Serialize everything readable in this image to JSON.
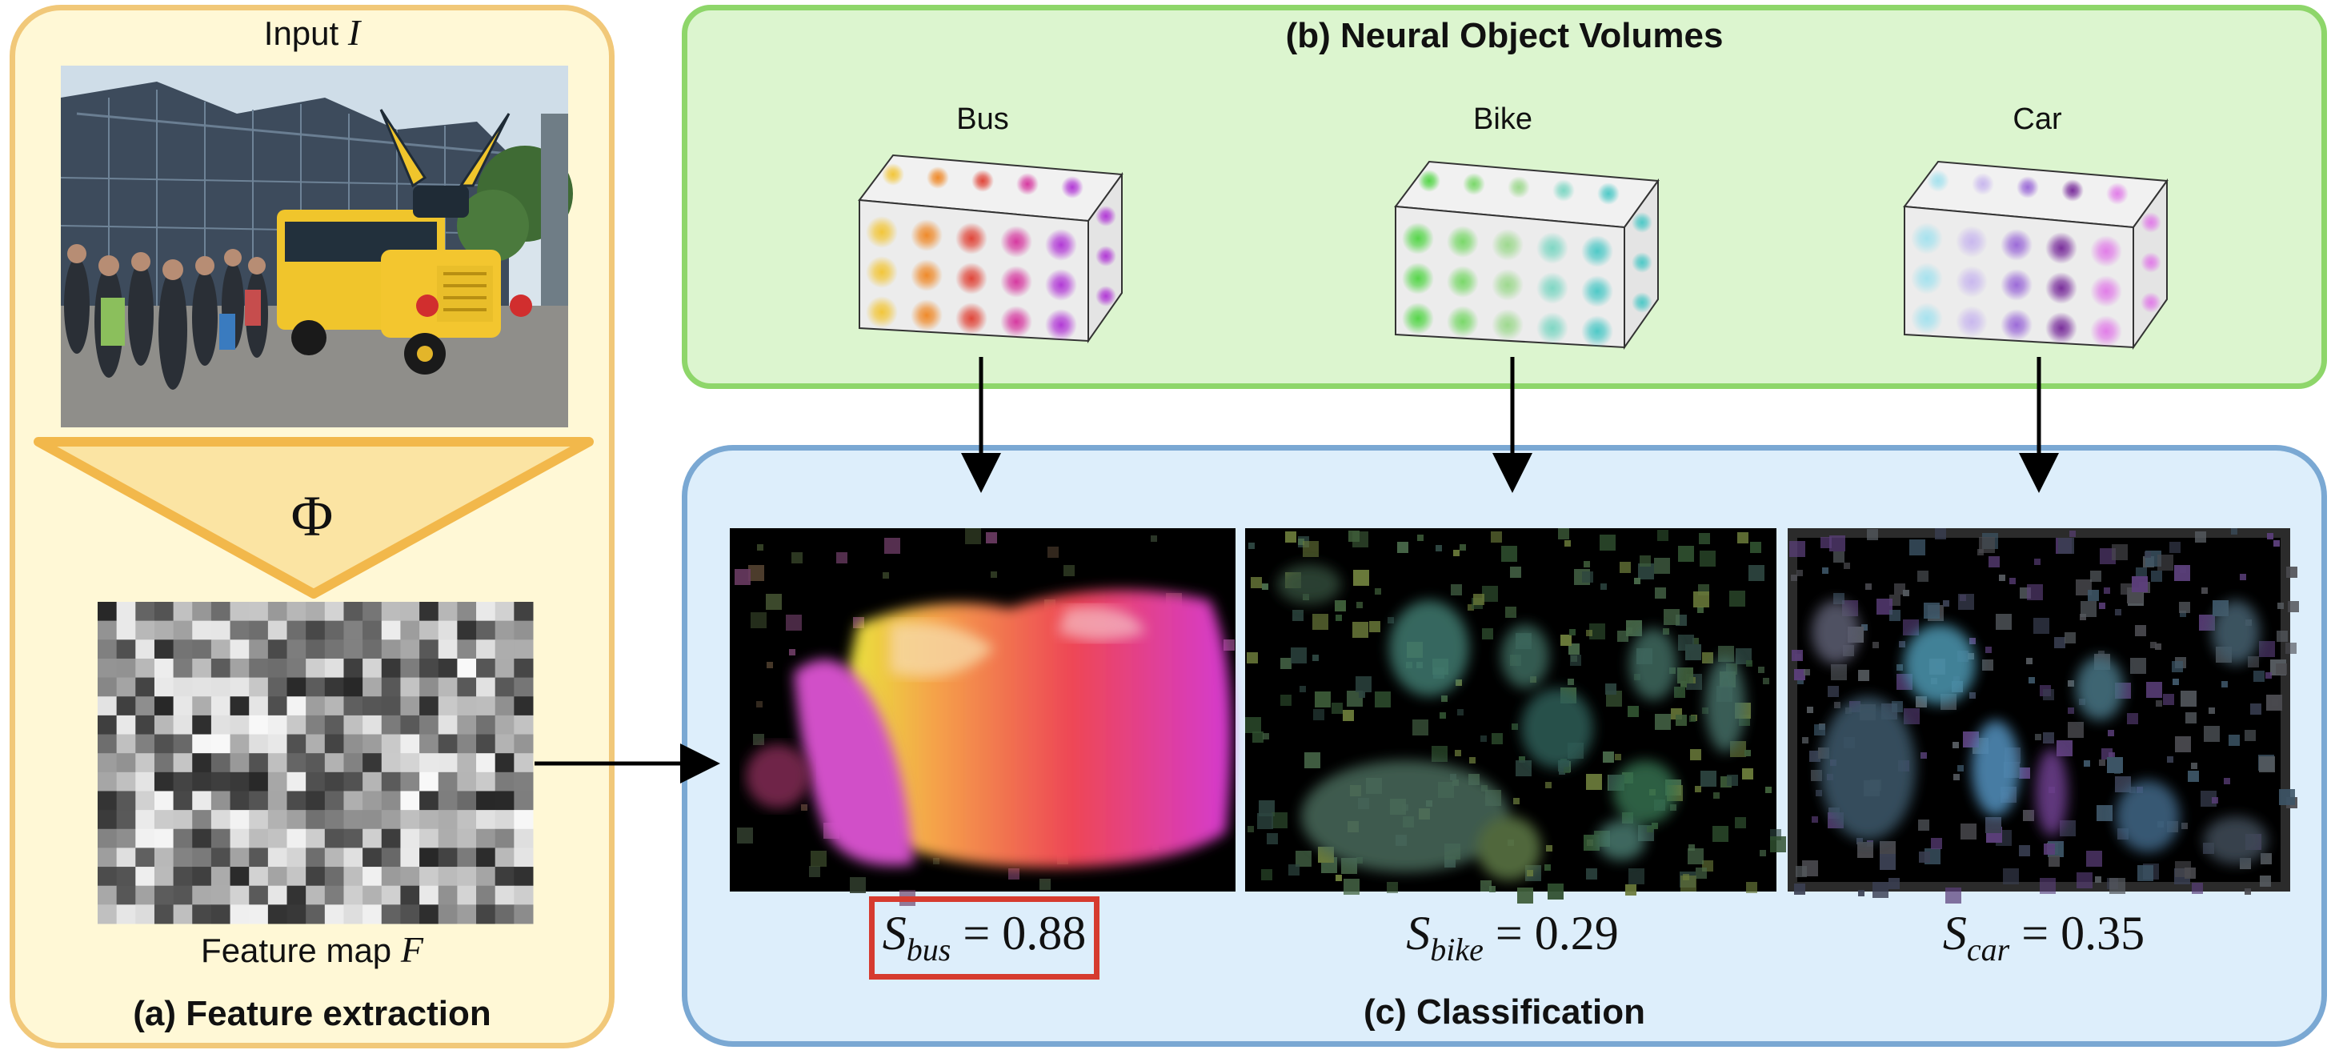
{
  "panel_a": {
    "input_label": "Input",
    "input_symbol": "I",
    "operator_symbol": "Φ",
    "feature_label": "Feature map",
    "feature_symbol": "F",
    "title": "(a) Feature extraction",
    "image_content": "photo of a yellow school bus dressed with ears, crowd of people, glass roof building"
  },
  "panel_b": {
    "title": "(b) Neural Object Volumes",
    "volumes": [
      {
        "label": "Bus",
        "palette": [
          "#f2c63a",
          "#ef8a2a",
          "#e0463a",
          "#d63aa0",
          "#b23ad6"
        ]
      },
      {
        "label": "Bike",
        "palette": [
          "#56d64a",
          "#7ad86a",
          "#9ed98f",
          "#7fd7c4",
          "#4fc9c7"
        ]
      },
      {
        "label": "Car",
        "palette": [
          "#a6e2ee",
          "#c9b8ee",
          "#9c6bd8",
          "#7a2f9c",
          "#e17ee8"
        ]
      }
    ]
  },
  "panel_c": {
    "title": "(c) Classification",
    "scores": [
      {
        "symbol": "S",
        "subscript": "bus",
        "value": "= 0.88",
        "highlighted": true
      },
      {
        "symbol": "S",
        "subscript": "bike",
        "value": "= 0.29",
        "highlighted": false
      },
      {
        "symbol": "S",
        "subscript": "car",
        "value": "= 0.35",
        "highlighted": false
      }
    ]
  },
  "colors": {
    "panel_a_fill": "#fff8d6",
    "panel_a_border": "#f1c879",
    "panel_b_fill": "#dcf5cf",
    "panel_b_border": "#8ed66a",
    "panel_c_fill": "#ddeefb",
    "panel_c_border": "#7aa8d3",
    "highlight": "#d63b2f",
    "funnel": "#f2b84b"
  }
}
